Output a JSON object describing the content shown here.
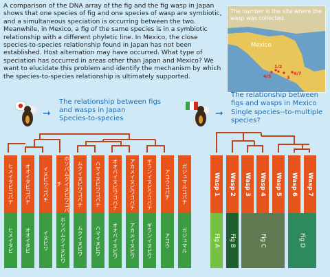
{
  "intro": {
    "text": "A comparison of the DNA array of the fig and the fig wasp in Japan shows that one species of fig and one species of wasp are symbiotic, and a simultaneous speciation is occurring between the two. Meanwhile, in Mexico, a fig of the same species is in a symbiotic relationship with a different phyletic line. In Mexico, the close species-to-species relationship found in Japan has not been established. Host alternation may have occurred. What type of speciation has occurred in areas other than Japan and Mexico? We want to elucidate this problem and identify the mechanism by which the species-to-species relationship is ultimately supported."
  },
  "map": {
    "caption": "The number is the site where the wasp was collected.",
    "country": "Mexico",
    "sites": [
      "4/5",
      "1/2",
      "3",
      "6/7"
    ]
  },
  "japan": {
    "title": "The relationship between figs and wasps in Japan",
    "subtitle": "Species-to-species",
    "wasps": [
      "ヒメイタビコバチ",
      "オオイタビコバチ",
      "イヌビワコバチ",
      "ホソバムクイヌビワコバチ",
      "ムクイヌビワコバチ",
      "ハマイヌビワコバチ",
      "オオバイヌビワコバチ",
      "アカメイヌビワコバチ",
      "ギランイヌビワコバチ",
      "アコウコバチ",
      "ガジュマルコバチ"
    ],
    "figs": [
      "ヒメイタビ",
      "オオイタビ",
      "イヌビワ",
      "ホソバムクイヌビワ",
      "ムクイヌビワ",
      "ハマイヌビワ",
      "オオバイヌビワ",
      "アカメイヌビワ",
      "ギランイヌビワ",
      "アコウ",
      "ガジュマル"
    ]
  },
  "mexico": {
    "title": "The relationship between figs and wasps in Mexico",
    "subtitle": "Single species--to-multiple species?",
    "wasps": [
      "Wasp 1",
      "Wasp 2",
      "Wasp 3",
      "Wasp 4",
      "Wasp 5",
      "Wasp 6",
      "Wasp 7"
    ],
    "figs": [
      "Fig A",
      "Fig B",
      "Fig C",
      "Fig D"
    ]
  }
}
